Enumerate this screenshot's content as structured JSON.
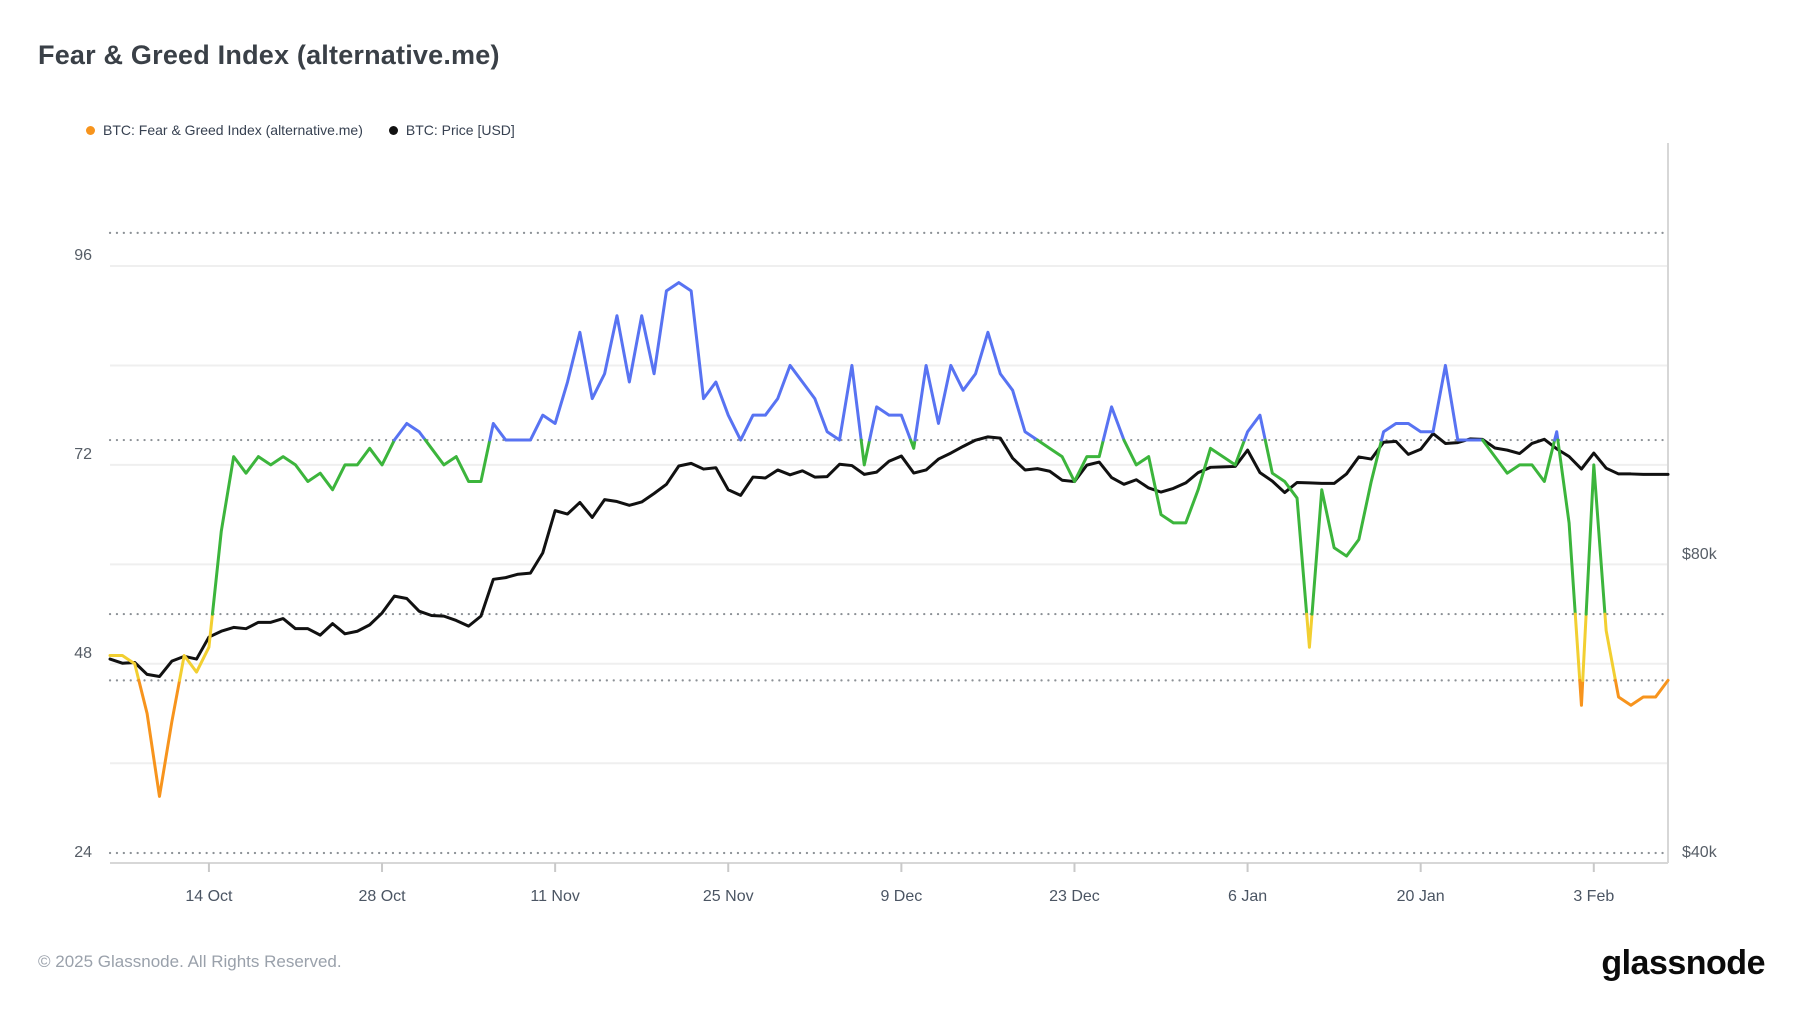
{
  "title": "Fear & Greed Index (alternative.me)",
  "legend": {
    "items": [
      {
        "label": "BTC: Fear & Greed Index (alternative.me)",
        "color": "#f7941d"
      },
      {
        "label": "BTC: Price [USD]",
        "color": "#111111"
      }
    ]
  },
  "footer": {
    "copyright": "© 2025 Glassnode. All Rights Reserved.",
    "brand": "glassnode"
  },
  "colors": {
    "extreme_greed_blue": "#5873f2",
    "greed_green": "#3cb53c",
    "neutral_yellow": "#f2cf31",
    "fear_orange": "#f7941d",
    "price_black": "#111111",
    "grid_light": "#efefef",
    "grid_dotted": "#8c9196",
    "axis_line": "#d7d7d7",
    "tick_mark": "#c9c9c9"
  },
  "chart_data": {
    "type": "line",
    "title": "Fear & Greed Index (alternative.me)",
    "cadence": "daily",
    "x_start_date": "2024-10-06",
    "x_end_date": "2025-02-09",
    "x_tick_labels": [
      "14 Oct",
      "28 Oct",
      "11 Nov",
      "25 Nov",
      "9 Dec",
      "23 Dec",
      "6 Jan",
      "20 Jan",
      "3 Feb"
    ],
    "x_tick_indices": [
      8,
      22,
      36,
      50,
      64,
      78,
      92,
      106,
      120
    ],
    "y_left": {
      "ticks": [
        "96",
        "72",
        "48",
        "24"
      ],
      "tick_values": [
        96,
        72,
        48,
        24
      ],
      "light_gridline_values": [
        96,
        84,
        72,
        60,
        48,
        36
      ],
      "dotted_threshold_values": [
        100,
        75,
        54,
        46
      ],
      "scale": "linear"
    },
    "y_right": {
      "ticks": [
        "$80k",
        "$40k"
      ],
      "tick_values_usd_k": [
        80,
        40
      ],
      "dotted_gridline_values_usd_k": [
        40
      ],
      "scale": "log2"
    },
    "band_colors": [
      {
        "band": "extreme_greed",
        "min": 75,
        "color": "#5873f2"
      },
      {
        "band": "greed",
        "min": 54,
        "color": "#3cb53c"
      },
      {
        "band": "neutral",
        "min": 46,
        "color": "#f2cf31"
      },
      {
        "band": "fear",
        "min": 0,
        "color": "#f7941d"
      }
    ],
    "series": [
      {
        "name": "BTC: Fear & Greed Index (alternative.me)",
        "multicolor_by_band": true,
        "values": [
          49,
          49,
          48,
          42,
          32,
          41,
          49,
          47,
          50,
          64,
          73,
          71,
          73,
          72,
          73,
          72,
          70,
          71,
          69,
          72,
          72,
          74,
          72,
          75,
          77,
          76,
          74,
          72,
          73,
          70,
          70,
          77,
          75,
          75,
          75,
          78,
          77,
          82,
          88,
          80,
          83,
          90,
          82,
          90,
          83,
          93,
          94,
          93,
          80,
          82,
          78,
          75,
          78,
          78,
          80,
          84,
          82,
          80,
          76,
          75,
          84,
          72,
          79,
          78,
          78,
          74,
          84,
          77,
          84,
          81,
          83,
          88,
          83,
          81,
          76,
          75,
          74,
          73,
          70,
          73,
          73,
          79,
          75,
          72,
          73,
          66,
          65,
          65,
          69,
          74,
          73,
          72,
          76,
          78,
          71,
          70,
          68,
          50,
          69,
          62,
          61,
          63,
          70,
          76,
          77,
          77,
          76,
          76,
          84,
          75,
          75,
          75,
          73,
          71,
          72,
          72,
          70,
          76,
          65,
          43,
          72,
          52,
          44,
          43,
          44,
          44,
          46
        ]
      },
      {
        "name": "BTC: Price [USD]",
        "color": "#111111",
        "values_usd_k": [
          62.8,
          62.2,
          62.3,
          60.6,
          60.3,
          62.5,
          63.2,
          62.8,
          66.1,
          67.0,
          67.6,
          67.4,
          68.4,
          68.4,
          69.0,
          67.4,
          67.4,
          66.4,
          68.2,
          66.6,
          67.0,
          68.0,
          69.9,
          72.7,
          72.3,
          70.2,
          69.5,
          69.4,
          68.7,
          67.8,
          69.4,
          75.6,
          75.9,
          76.5,
          76.7,
          80.4,
          88.7,
          88.0,
          90.4,
          87.3,
          91.0,
          90.6,
          89.8,
          90.5,
          92.3,
          94.3,
          98.4,
          99.0,
          97.7,
          98.0,
          93.1,
          91.9,
          95.9,
          95.7,
          97.5,
          96.4,
          97.3,
          95.9,
          96.0,
          98.8,
          98.5,
          96.5,
          97.0,
          99.5,
          100.7,
          96.8,
          97.5,
          100.0,
          101.4,
          103.0,
          104.5,
          105.3,
          105.0,
          100.2,
          97.5,
          97.8,
          97.2,
          95.2,
          94.9,
          98.6,
          99.3,
          95.8,
          94.3,
          95.3,
          93.5,
          92.6,
          93.4,
          94.6,
          96.9,
          98.1,
          98.2,
          98.3,
          102.1,
          96.9,
          95.0,
          92.5,
          94.7,
          94.6,
          94.5,
          94.5,
          96.6,
          100.5,
          100.0,
          104.0,
          104.2,
          101.1,
          102.3,
          106.1,
          103.7,
          103.9,
          104.8,
          104.7,
          102.6,
          102.1,
          101.3,
          103.7,
          104.7,
          102.4,
          100.6,
          97.7,
          101.4,
          97.9,
          96.6,
          96.6,
          96.5,
          96.5,
          96.5
        ]
      }
    ]
  }
}
